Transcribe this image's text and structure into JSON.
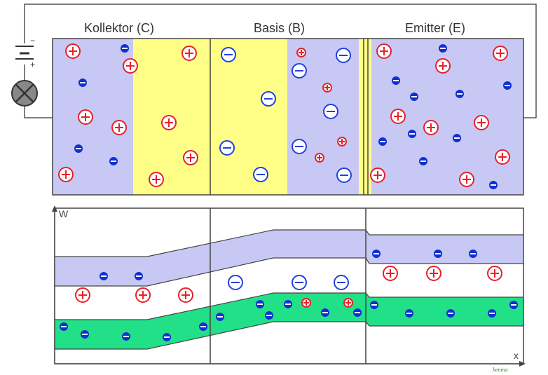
{
  "labels": {
    "collector": "Kollektor (C)",
    "base": "Basis (B)",
    "emitter": "Emitter (E)",
    "axis_w": "W",
    "axis_x": "x",
    "signature": "henina"
  },
  "battery": {
    "minus": "−",
    "plus": "+"
  },
  "colors": {
    "ntype": "#c8c8f5",
    "ptype": "#ffff88",
    "band_conduction": "#c8c8f5",
    "band_valence": "#22e088",
    "hole": "#e8202a",
    "electron_bound": "#2040e0",
    "electron_free": "#1030d0"
  }
}
